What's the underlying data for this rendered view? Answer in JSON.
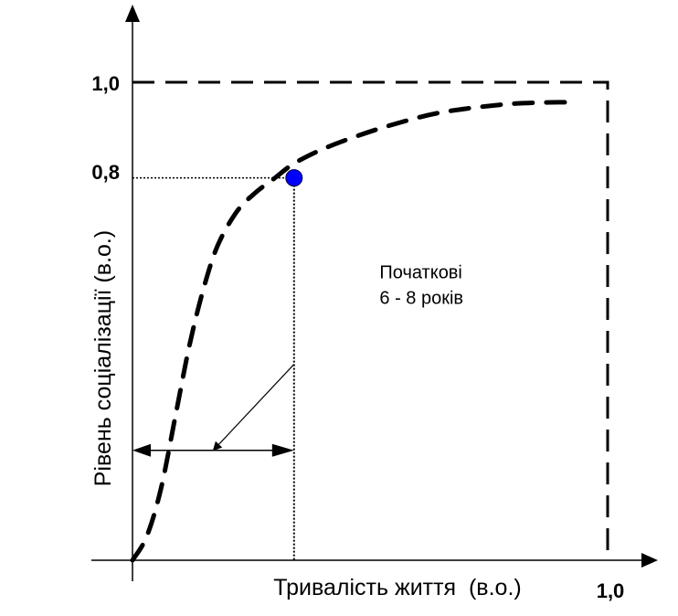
{
  "chart_data": {
    "type": "line",
    "xlabel": "Тривалість життя  (в.о.)",
    "ylabel": "Рівень соціалізації (в.о.)",
    "xlim": [
      0,
      1.0
    ],
    "ylim": [
      0,
      1.0
    ],
    "x_ticks": [
      {
        "value": 1.0,
        "label": "1,0"
      }
    ],
    "y_ticks": [
      {
        "value": 1.0,
        "label": "1,0"
      },
      {
        "value": 0.8,
        "label": "0,8"
      }
    ],
    "grid": false,
    "legend": "none",
    "series": [
      {
        "style": "dashed",
        "color": "#000000",
        "x": [
          0.0,
          0.03,
          0.06,
          0.09,
          0.12,
          0.15,
          0.18,
          0.22,
          0.26,
          0.3,
          0.34,
          0.4,
          0.48,
          0.56,
          0.64,
          0.72,
          0.8,
          0.88,
          0.92
        ],
        "y": [
          0.0,
          0.05,
          0.15,
          0.3,
          0.45,
          0.57,
          0.66,
          0.73,
          0.77,
          0.8,
          0.83,
          0.86,
          0.89,
          0.915,
          0.935,
          0.947,
          0.955,
          0.958,
          0.958
        ]
      }
    ],
    "boundary": {
      "x": 1.0,
      "y": 1.0,
      "style": "dashed"
    },
    "marker": {
      "x": 0.34,
      "y": 0.8,
      "color": "#0000ff"
    },
    "span": {
      "from": 0.0,
      "to": 0.34,
      "y": 0.23
    },
    "annotation": {
      "lines": [
        "Початкові",
        "6 - 8 років"
      ],
      "text_x": 0.52,
      "text_y": 0.59,
      "arrow_from": [
        0.34,
        0.41
      ],
      "arrow_to": [
        0.17,
        0.23
      ]
    }
  }
}
